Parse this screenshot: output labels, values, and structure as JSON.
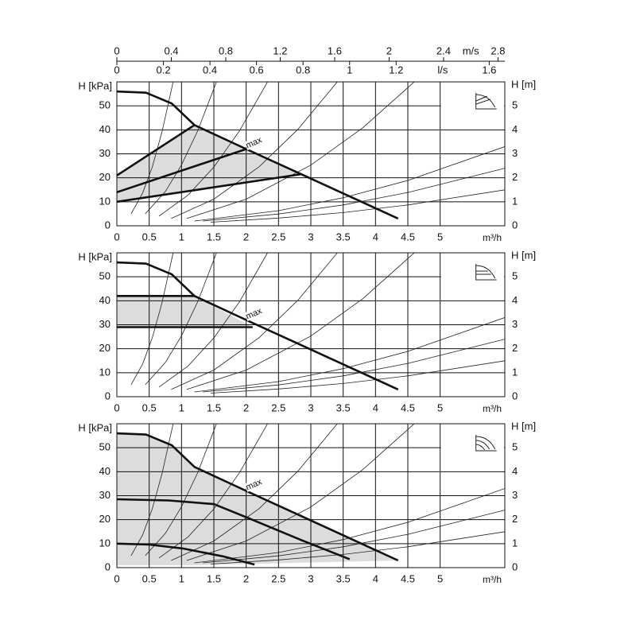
{
  "chart_data": [
    {
      "type": "line",
      "xlabel": "m³/h",
      "ylabel": "H [kPa]",
      "y2label": "H [m]",
      "xlim": [
        0,
        6
      ],
      "xticks": [
        0,
        0.5,
        1,
        1.5,
        2,
        2.5,
        3,
        3.5,
        4,
        4.5,
        5
      ],
      "ylim": [
        0,
        60
      ],
      "yticks": [
        0,
        10,
        20,
        30,
        40,
        50
      ],
      "y2lim": [
        0,
        6
      ],
      "y2ticks": [
        0,
        1,
        2,
        3,
        4,
        5
      ],
      "grid": true,
      "top_axes": [
        {
          "label": "m/s",
          "lim": [
            0,
            2.85
          ],
          "ticks": [
            0,
            0.4,
            0.8,
            1.2,
            1.6,
            2,
            2.4,
            2.8
          ]
        },
        {
          "label": "l/s",
          "lim": [
            0,
            1.667
          ],
          "ticks": [
            0,
            0.2,
            0.4,
            0.6,
            0.8,
            1,
            1.2,
            1.6
          ]
        }
      ],
      "annotation": "max",
      "area": {
        "color": "#dcdcdc",
        "x": [
          0,
          1.2,
          2,
          2.85,
          0
        ],
        "values": [
          21,
          42,
          32,
          21.5,
          10
        ]
      },
      "series": [
        {
          "color": "#111111",
          "x": [
            0,
            0.45,
            0.85,
            1.2,
            2,
            2.85,
            3.5,
            4.35
          ],
          "values": [
            56,
            55.5,
            51,
            42,
            32,
            21.5,
            13.5,
            3
          ]
        },
        {
          "color": "#111111",
          "x": [
            0,
            1.2
          ],
          "values": [
            21,
            42
          ]
        },
        {
          "color": "#111111",
          "x": [
            0,
            2
          ],
          "values": [
            14,
            32
          ]
        },
        {
          "color": "#111111",
          "x": [
            0,
            2.85
          ],
          "values": [
            10,
            21.5
          ]
        }
      ],
      "system_curves": [
        {
          "x": [
            0.22,
            0.4,
            0.55,
            0.7,
            0.87
          ],
          "values": [
            5,
            13.7,
            24.7,
            39.3,
            60
          ]
        },
        {
          "x": [
            0.44,
            0.75,
            1,
            1.25,
            1.54
          ],
          "values": [
            5,
            14.3,
            25.4,
            39.6,
            60
          ]
        },
        {
          "x": [
            0.65,
            1.1,
            1.5,
            1.9,
            2.33
          ],
          "values": [
            4,
            12.8,
            24.5,
            39.7,
            60
          ]
        },
        {
          "x": [
            0.84,
            1.5,
            2.2,
            2.8,
            3.41
          ],
          "values": [
            3,
            11.1,
            24.6,
            40.2,
            60
          ]
        },
        {
          "x": [
            1.08,
            2,
            3,
            3.8,
            4.6
          ],
          "values": [
            3,
            11.1,
            25.3,
            40.8,
            60
          ]
        },
        {
          "x": [
            1.2,
            2.5,
            3.5,
            4.5,
            6
          ],
          "values": [
            2,
            6.3,
            11.7,
            18.9,
            33
          ]
        },
        {
          "x": [
            1.33,
            2.5,
            3.5,
            4.5,
            6
          ],
          "values": [
            2,
            4.9,
            8.7,
            13.9,
            24
          ]
        },
        {
          "x": [
            1.45,
            2.5,
            3.5,
            4.5,
            6
          ],
          "values": [
            1.5,
            3.2,
            5.5,
            8.7,
            15
          ]
        }
      ]
    },
    {
      "type": "line",
      "xlabel": "m³/h",
      "ylabel": "H [kPa]",
      "y2label": "H [m]",
      "xlim": [
        0,
        6
      ],
      "xticks": [
        0,
        0.5,
        1,
        1.5,
        2,
        2.5,
        3,
        3.5,
        4,
        4.5,
        5
      ],
      "ylim": [
        0,
        60
      ],
      "yticks": [
        0,
        10,
        20,
        30,
        40,
        50
      ],
      "y2lim": [
        0,
        6
      ],
      "y2ticks": [
        0,
        1,
        2,
        3,
        4,
        5
      ],
      "grid": true,
      "annotation": "max",
      "area": {
        "color": "#dcdcdc",
        "x": [
          0,
          1.2,
          2.1,
          0
        ],
        "values": [
          42,
          42,
          29,
          29
        ]
      },
      "series": [
        {
          "color": "#111111",
          "x": [
            0,
            0.45,
            0.85,
            1.2,
            2,
            2.85,
            3.5,
            4.35
          ],
          "values": [
            56,
            55.5,
            51,
            42,
            32,
            21.5,
            13.5,
            3
          ]
        },
        {
          "color": "#111111",
          "x": [
            0,
            1.2
          ],
          "values": [
            42,
            42
          ]
        },
        {
          "color": "#111111",
          "x": [
            0,
            2.1
          ],
          "values": [
            29,
            29
          ]
        }
      ],
      "system_curves": [
        {
          "x": [
            0.22,
            0.4,
            0.55,
            0.7,
            0.87
          ],
          "values": [
            5,
            13.7,
            24.7,
            39.3,
            60
          ]
        },
        {
          "x": [
            0.44,
            0.75,
            1,
            1.25,
            1.54
          ],
          "values": [
            5,
            14.3,
            25.4,
            39.6,
            60
          ]
        },
        {
          "x": [
            0.65,
            1.1,
            1.5,
            1.9,
            2.33
          ],
          "values": [
            4,
            12.8,
            24.5,
            39.7,
            60
          ]
        },
        {
          "x": [
            0.84,
            1.5,
            2.2,
            2.8,
            3.41
          ],
          "values": [
            3,
            11.1,
            24.6,
            40.2,
            60
          ]
        },
        {
          "x": [
            1.08,
            2,
            3,
            3.8,
            4.6
          ],
          "values": [
            3,
            11.1,
            25.3,
            40.8,
            60
          ]
        },
        {
          "x": [
            1.2,
            2.5,
            3.5,
            4.5,
            6
          ],
          "values": [
            2,
            6.3,
            11.7,
            18.9,
            33
          ]
        },
        {
          "x": [
            1.33,
            2.5,
            3.5,
            4.5,
            6
          ],
          "values": [
            2,
            4.9,
            8.7,
            13.9,
            24
          ]
        },
        {
          "x": [
            1.45,
            2.5,
            3.5,
            4.5,
            6
          ],
          "values": [
            1.5,
            3.2,
            5.5,
            8.7,
            15
          ]
        }
      ]
    },
    {
      "type": "line",
      "xlabel": "m³/h",
      "ylabel": "H [kPa]",
      "y2label": "H [m]",
      "xlim": [
        0,
        6
      ],
      "xticks": [
        0,
        0.5,
        1,
        1.5,
        2,
        2.5,
        3,
        3.5,
        4,
        4.5,
        5
      ],
      "ylim": [
        0,
        60
      ],
      "yticks": [
        0,
        10,
        20,
        30,
        40,
        50
      ],
      "y2lim": [
        0,
        6
      ],
      "y2ticks": [
        0,
        1,
        2,
        3,
        4,
        5
      ],
      "grid": true,
      "annotation": "max",
      "area": {
        "color": "#dcdcdc",
        "x": [
          0,
          0.45,
          0.85,
          1.2,
          2,
          2.85,
          3.5,
          4.35,
          1.2,
          0
        ],
        "values": [
          56,
          55.5,
          51,
          42,
          32,
          21.5,
          13.5,
          3,
          1,
          1
        ]
      },
      "series": [
        {
          "color": "#111111",
          "x": [
            0,
            0.45,
            0.85,
            1.2,
            2,
            2.85,
            3.5,
            4.35
          ],
          "values": [
            56,
            55.5,
            51,
            42,
            32,
            21.5,
            13.5,
            3
          ]
        },
        {
          "color": "#111111",
          "x": [
            0,
            0.8,
            1.5,
            2,
            2.87,
            3.6
          ],
          "values": [
            28.5,
            28,
            26.5,
            21,
            11.3,
            3.5
          ]
        },
        {
          "color": "#111111",
          "x": [
            0,
            0.5,
            1.02,
            1.64,
            2.13
          ],
          "values": [
            10,
            9.6,
            8,
            4.7,
            1.3
          ]
        }
      ],
      "system_curves": [
        {
          "x": [
            0.22,
            0.4,
            0.55,
            0.7,
            0.87
          ],
          "values": [
            5,
            13.7,
            24.7,
            39.3,
            60
          ]
        },
        {
          "x": [
            0.44,
            0.75,
            1,
            1.25,
            1.54
          ],
          "values": [
            5,
            14.3,
            25.4,
            39.6,
            60
          ]
        },
        {
          "x": [
            0.65,
            1.1,
            1.5,
            1.9,
            2.33
          ],
          "values": [
            4,
            12.8,
            24.5,
            39.7,
            60
          ]
        },
        {
          "x": [
            0.84,
            1.5,
            2.2,
            2.8,
            3.41
          ],
          "values": [
            3,
            11.1,
            24.6,
            40.2,
            60
          ]
        },
        {
          "x": [
            1.08,
            2,
            3,
            3.8,
            4.6
          ],
          "values": [
            3,
            11.1,
            25.3,
            40.8,
            60
          ]
        },
        {
          "x": [
            1.2,
            2.5,
            3.5,
            4.5,
            6
          ],
          "values": [
            2,
            6.3,
            11.7,
            18.9,
            33
          ]
        },
        {
          "x": [
            1.33,
            2.5,
            3.5,
            4.5,
            6
          ],
          "values": [
            2,
            4.9,
            8.7,
            13.9,
            24
          ]
        },
        {
          "x": [
            1.45,
            2.5,
            3.5,
            4.5,
            6
          ],
          "values": [
            1.5,
            3.2,
            5.5,
            8.7,
            15
          ]
        }
      ]
    }
  ]
}
